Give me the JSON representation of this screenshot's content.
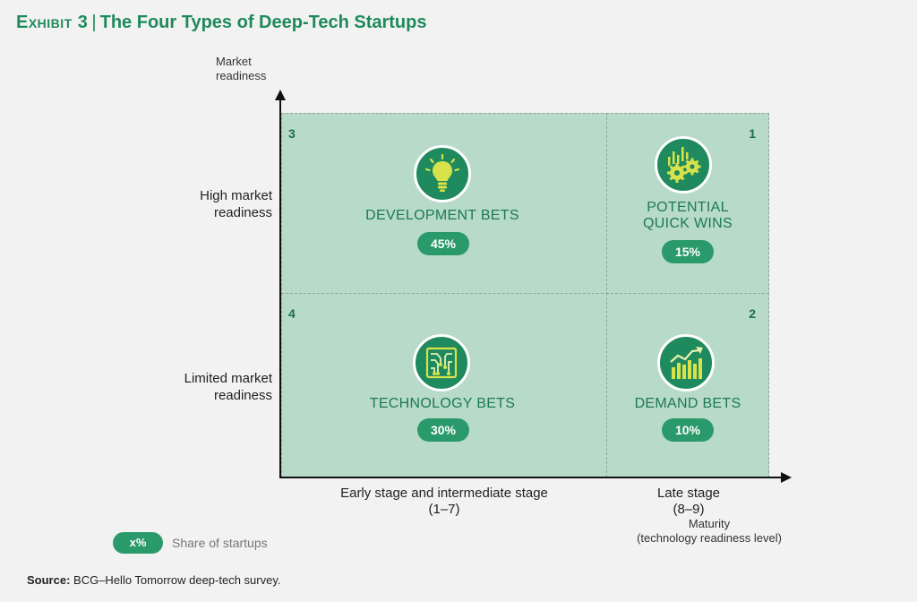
{
  "title": {
    "exhibit": "Exhibit 3",
    "separator": "|",
    "text": "The Four Types of Deep-Tech Startups"
  },
  "axes": {
    "y_label_line1": "Market",
    "y_label_line2": "readiness",
    "x_label_line1": "Maturity",
    "x_label_line2": "(technology readiness level)"
  },
  "rows": {
    "high_line1": "High market",
    "high_line2": "readiness",
    "limited_line1": "Limited market",
    "limited_line2": "readiness"
  },
  "columns": {
    "early_line1": "Early stage and intermediate stage",
    "early_line2": "(1–7)",
    "late_line1": "Late stage",
    "late_line2": "(8–9)"
  },
  "quadrants": {
    "q3": {
      "number": "3",
      "label": "DEVELOPMENT BETS",
      "share": "45%",
      "icon": "lightbulb-icon"
    },
    "q1": {
      "number": "1",
      "label_line1": "POTENTIAL",
      "label_line2": "QUICK WINS",
      "share": "15%",
      "icon": "gears-chart-icon"
    },
    "q4": {
      "number": "4",
      "label": "TECHNOLOGY BETS",
      "share": "30%",
      "icon": "circuit-board-icon"
    },
    "q2": {
      "number": "2",
      "label": "DEMAND BETS",
      "share": "10%",
      "icon": "rising-bar-chart-icon"
    }
  },
  "legend": {
    "pill": "x%",
    "text": "Share of startups"
  },
  "source": {
    "label": "Source:",
    "text": "BCG–Hello Tomorrow deep-tech survey."
  },
  "colors": {
    "quadrant_fill": "#b7dac9",
    "accent": "#1f8a5e",
    "title": "#1e8a5c"
  }
}
